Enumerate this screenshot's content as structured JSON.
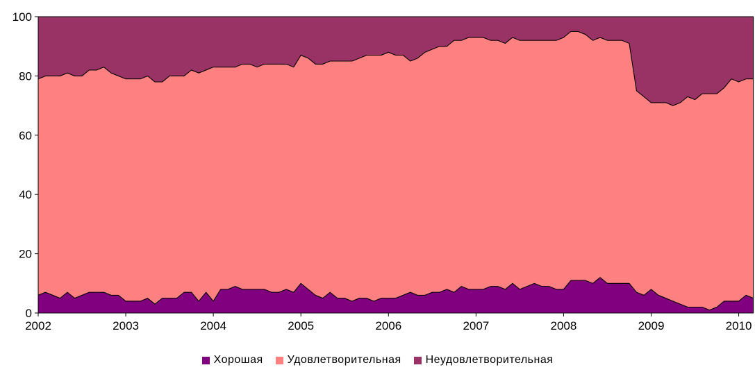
{
  "chart_data": {
    "type": "area",
    "stacked": true,
    "xlim": [
      2002,
      2010.17
    ],
    "ylim": [
      0,
      100
    ],
    "x_ticks": [
      "2002",
      "2003",
      "2004",
      "2005",
      "2006",
      "2007",
      "2008",
      "2009",
      "2010"
    ],
    "y_ticks": [
      "0",
      "20",
      "40",
      "60",
      "80",
      "100"
    ],
    "grid": false,
    "legend_position": "bottom",
    "x": [
      2002.0,
      2002.083,
      2002.167,
      2002.25,
      2002.333,
      2002.417,
      2002.5,
      2002.583,
      2002.667,
      2002.75,
      2002.833,
      2002.917,
      2003.0,
      2003.083,
      2003.167,
      2003.25,
      2003.333,
      2003.417,
      2003.5,
      2003.583,
      2003.667,
      2003.75,
      2003.833,
      2003.917,
      2004.0,
      2004.083,
      2004.167,
      2004.25,
      2004.333,
      2004.417,
      2004.5,
      2004.583,
      2004.667,
      2004.75,
      2004.833,
      2004.917,
      2005.0,
      2005.083,
      2005.167,
      2005.25,
      2005.333,
      2005.417,
      2005.5,
      2005.583,
      2005.667,
      2005.75,
      2005.833,
      2005.917,
      2006.0,
      2006.083,
      2006.167,
      2006.25,
      2006.333,
      2006.417,
      2006.5,
      2006.583,
      2006.667,
      2006.75,
      2006.833,
      2006.917,
      2007.0,
      2007.083,
      2007.167,
      2007.25,
      2007.333,
      2007.417,
      2007.5,
      2007.583,
      2007.667,
      2007.75,
      2007.833,
      2007.917,
      2008.0,
      2008.083,
      2008.167,
      2008.25,
      2008.333,
      2008.417,
      2008.5,
      2008.583,
      2008.667,
      2008.75,
      2008.833,
      2008.917,
      2009.0,
      2009.083,
      2009.167,
      2009.25,
      2009.333,
      2009.417,
      2009.5,
      2009.583,
      2009.667,
      2009.75,
      2009.833,
      2009.917,
      2010.0,
      2010.083,
      2010.167
    ],
    "series": [
      {
        "name": "Хорошая",
        "color": "#800080",
        "values": [
          6,
          7,
          6,
          5,
          7,
          5,
          6,
          7,
          7,
          7,
          6,
          6,
          4,
          4,
          4,
          5,
          3,
          5,
          5,
          5,
          7,
          7,
          4,
          7,
          4,
          8,
          8,
          9,
          8,
          8,
          8,
          8,
          7,
          7,
          8,
          7,
          10,
          8,
          6,
          5,
          7,
          5,
          5,
          4,
          5,
          5,
          4,
          5,
          5,
          5,
          6,
          7,
          6,
          6,
          7,
          7,
          8,
          7,
          9,
          8,
          8,
          8,
          9,
          9,
          8,
          10,
          8,
          9,
          10,
          9,
          9,
          8,
          8,
          11,
          11,
          11,
          10,
          12,
          10,
          10,
          10,
          10,
          7,
          6,
          8,
          6,
          5,
          4,
          3,
          2,
          2,
          2,
          1,
          2,
          4,
          4,
          4,
          6,
          5
        ]
      },
      {
        "name": "Удовлетворительная",
        "color": "#FF8080",
        "values": [
          73,
          73,
          74,
          75,
          74,
          75,
          74,
          75,
          75,
          76,
          75,
          74,
          75,
          75,
          75,
          75,
          75,
          73,
          75,
          75,
          73,
          75,
          77,
          75,
          79,
          75,
          75,
          74,
          76,
          76,
          75,
          76,
          77,
          77,
          76,
          76,
          77,
          78,
          78,
          79,
          78,
          80,
          80,
          81,
          81,
          82,
          83,
          82,
          83,
          82,
          81,
          78,
          80,
          82,
          82,
          83,
          82,
          85,
          83,
          85,
          85,
          85,
          83,
          83,
          83,
          83,
          84,
          83,
          82,
          83,
          83,
          84,
          85,
          84,
          84,
          83,
          82,
          81,
          82,
          82,
          82,
          81,
          68,
          67,
          63,
          65,
          66,
          66,
          68,
          71,
          70,
          72,
          73,
          72,
          72,
          75,
          74,
          73,
          74
        ]
      },
      {
        "name": "Неудовлетворительная",
        "color": "#993366",
        "values": [
          21,
          20,
          20,
          20,
          19,
          20,
          20,
          18,
          18,
          17,
          19,
          20,
          21,
          21,
          21,
          20,
          22,
          22,
          20,
          20,
          20,
          18,
          19,
          18,
          17,
          17,
          17,
          17,
          16,
          16,
          17,
          16,
          16,
          16,
          16,
          17,
          13,
          14,
          16,
          16,
          15,
          15,
          15,
          15,
          14,
          13,
          13,
          13,
          12,
          13,
          13,
          15,
          14,
          12,
          11,
          10,
          10,
          8,
          8,
          7,
          7,
          7,
          8,
          8,
          9,
          7,
          8,
          8,
          8,
          8,
          8,
          8,
          7,
          5,
          5,
          6,
          8,
          7,
          8,
          8,
          8,
          9,
          25,
          27,
          29,
          29,
          29,
          30,
          29,
          27,
          28,
          26,
          26,
          26,
          24,
          21,
          22,
          21,
          21
        ]
      }
    ]
  },
  "legend": {
    "items": [
      {
        "label": "Хорошая",
        "color": "#800080"
      },
      {
        "label": "Удовлетворительная",
        "color": "#FF8080"
      },
      {
        "label": "Неудовлетворительная",
        "color": "#993366"
      }
    ]
  }
}
